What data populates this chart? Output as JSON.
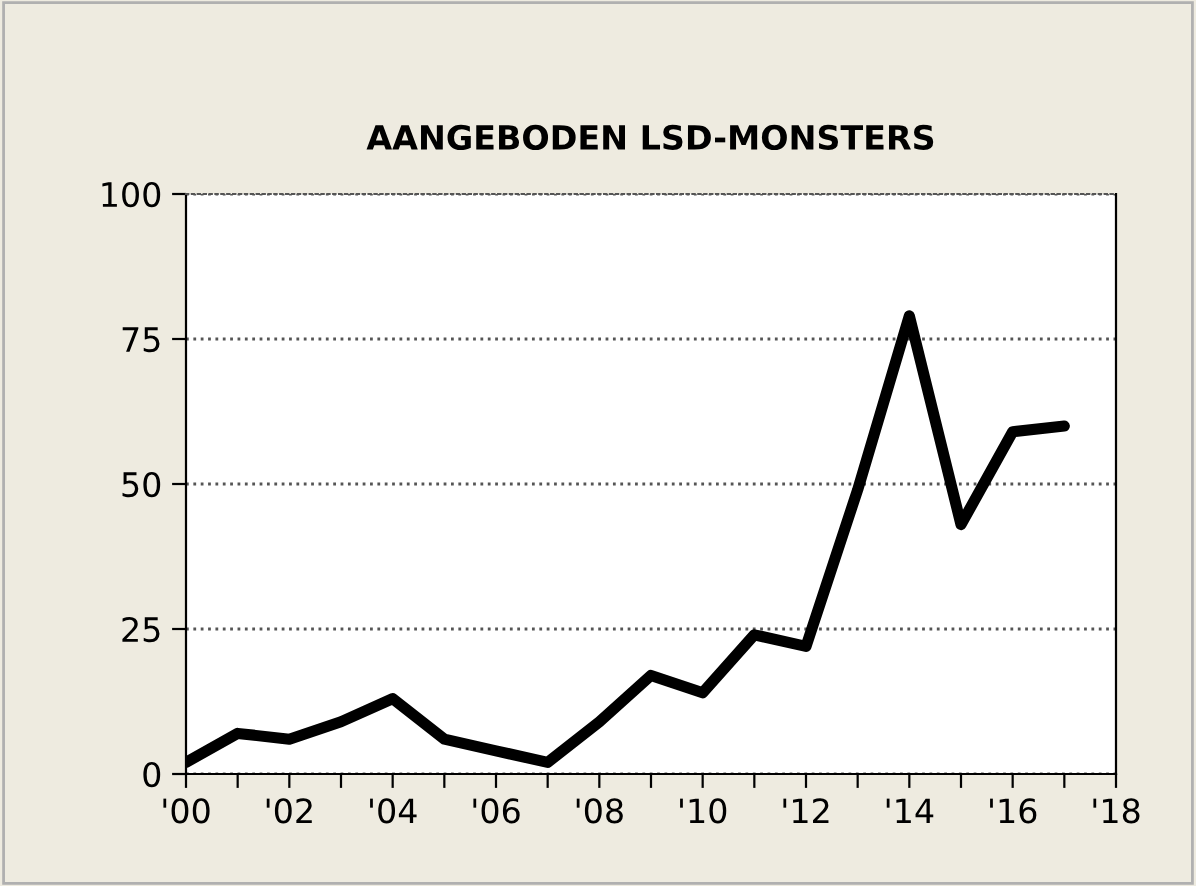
{
  "chart_data": {
    "type": "line",
    "title": "AANGEBODEN LSD-MONSTERS",
    "x": [
      2000,
      2001,
      2002,
      2003,
      2004,
      2005,
      2006,
      2007,
      2008,
      2009,
      2010,
      2011,
      2012,
      2013,
      2014,
      2015,
      2016,
      2017
    ],
    "series": [
      {
        "color": "#000000",
        "values": [
          2,
          7,
          6,
          9,
          13,
          6,
          4,
          2,
          9,
          17,
          14,
          24,
          22,
          49,
          79,
          43,
          59,
          60
        ]
      }
    ],
    "xlim": [
      2000,
      2018
    ],
    "xticks": [
      {
        "value": 2000,
        "label": "'00"
      },
      {
        "value": 2001,
        "label": null
      },
      {
        "value": 2002,
        "label": "'02"
      },
      {
        "value": 2003,
        "label": null
      },
      {
        "value": 2004,
        "label": "'04"
      },
      {
        "value": 2005,
        "label": null
      },
      {
        "value": 2006,
        "label": "'06"
      },
      {
        "value": 2007,
        "label": null
      },
      {
        "value": 2008,
        "label": "'08"
      },
      {
        "value": 2009,
        "label": null
      },
      {
        "value": 2010,
        "label": "'10"
      },
      {
        "value": 2011,
        "label": null
      },
      {
        "value": 2012,
        "label": "'12"
      },
      {
        "value": 2013,
        "label": null
      },
      {
        "value": 2014,
        "label": "'14"
      },
      {
        "value": 2015,
        "label": null
      },
      {
        "value": 2016,
        "label": "'16"
      },
      {
        "value": 2017,
        "label": null
      },
      {
        "value": 2018,
        "label": "'18"
      }
    ],
    "ylim": [
      0,
      100
    ],
    "yticks": [
      0,
      25,
      50,
      75,
      100
    ],
    "grid": "y",
    "marker": "none",
    "line_style": "solid"
  }
}
